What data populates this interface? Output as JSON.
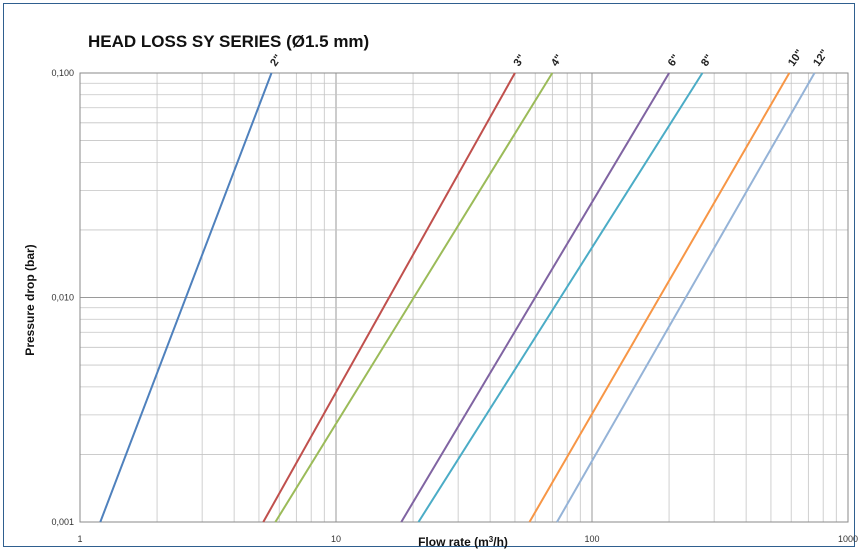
{
  "chart_data": {
    "type": "line",
    "title": "HEAD LOSS SY SERIES (Ø1.5 mm)",
    "xlabel": "Flow rate (m³/h)",
    "ylabel": "Pressure drop (bar)",
    "x_scale": "log",
    "y_scale": "log",
    "xlim": [
      1,
      1000
    ],
    "ylim": [
      0.001,
      0.1
    ],
    "x_ticks": [
      {
        "value": 1,
        "label": "1"
      },
      {
        "value": 10,
        "label": "10"
      },
      {
        "value": 100,
        "label": "100"
      },
      {
        "value": 1000,
        "label": "1000"
      }
    ],
    "y_ticks": [
      {
        "value": 0.001,
        "label": "0,001"
      },
      {
        "value": 0.01,
        "label": "0,010"
      },
      {
        "value": 0.1,
        "label": "0,100"
      }
    ],
    "grid": true,
    "legend": "labels at line ends (top)",
    "series": [
      {
        "name": "2\"",
        "color": "#4f81bd",
        "x": [
          1.2,
          5.6
        ],
        "y": [
          0.001,
          0.1
        ]
      },
      {
        "name": "3\"",
        "color": "#c0504d",
        "x": [
          5.2,
          50
        ],
        "y": [
          0.001,
          0.1
        ]
      },
      {
        "name": "4\"",
        "color": "#9bbb59",
        "x": [
          5.8,
          70
        ],
        "y": [
          0.001,
          0.1
        ]
      },
      {
        "name": "6\"",
        "color": "#8064a2",
        "x": [
          18,
          200
        ],
        "y": [
          0.001,
          0.1
        ]
      },
      {
        "name": "8\"",
        "color": "#4bacc6",
        "x": [
          21,
          270
        ],
        "y": [
          0.001,
          0.1
        ]
      },
      {
        "name": "10\"",
        "color": "#f79646",
        "x": [
          57,
          590
        ],
        "y": [
          0.001,
          0.1
        ]
      },
      {
        "name": "12\"",
        "color": "#95b3d7",
        "x": [
          73,
          740
        ],
        "y": [
          0.001,
          0.1
        ]
      }
    ]
  }
}
